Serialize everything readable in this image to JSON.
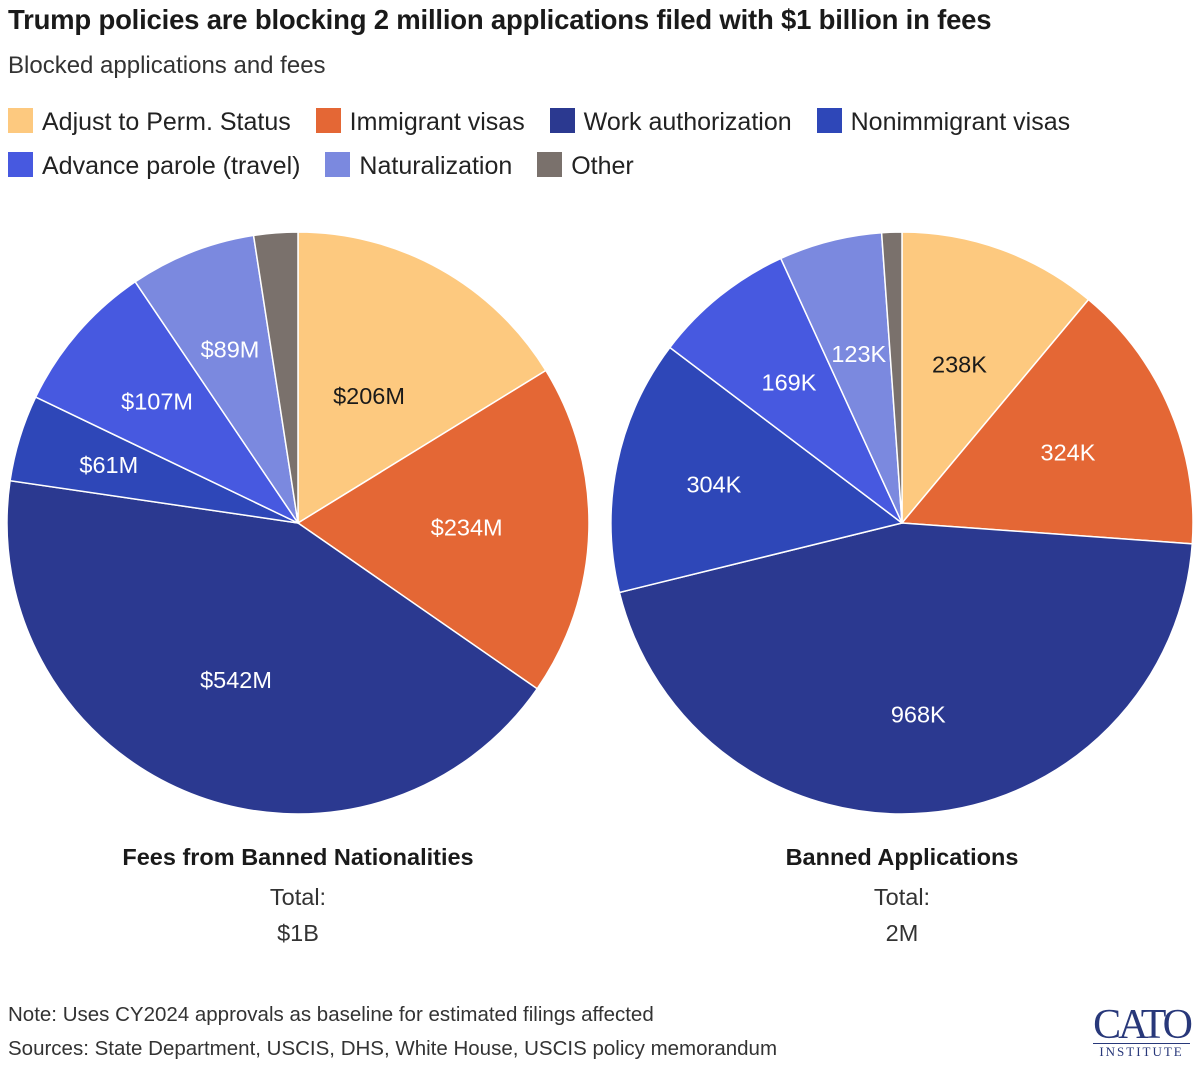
{
  "title": "Trump policies are blocking 2 million applications filed with $1 billion in fees",
  "subtitle": "Blocked applications and fees",
  "legend": [
    {
      "label": "Adjust to Perm. Status",
      "color": "#FDC97F"
    },
    {
      "label": "Immigrant visas",
      "color": "#E46735"
    },
    {
      "label": "Work authorization",
      "color": "#2B3990"
    },
    {
      "label": "Nonimmigrant visas",
      "color": "#2E47B8"
    },
    {
      "label": "Advance parole (travel)",
      "color": "#4759E0"
    },
    {
      "label": "Naturalization",
      "color": "#7B89DF"
    },
    {
      "label": "Other",
      "color": "#7A716C"
    }
  ],
  "chart_data": [
    {
      "type": "pie",
      "title": "Fees from Banned Nationalities",
      "total_label": "Total:",
      "total_value": "$1B",
      "slices": [
        {
          "category": "Adjust to Perm. Status",
          "value": 206,
          "label": "$206M"
        },
        {
          "category": "Immigrant visas",
          "value": 234,
          "label": "$234M"
        },
        {
          "category": "Work authorization",
          "value": 542,
          "label": "$542M"
        },
        {
          "category": "Nonimmigrant visas",
          "value": 61,
          "label": "$61M"
        },
        {
          "category": "Advance parole (travel)",
          "value": 107,
          "label": "$107M"
        },
        {
          "category": "Naturalization",
          "value": 89,
          "label": "$89M"
        },
        {
          "category": "Other",
          "value": 31,
          "label": ""
        }
      ]
    },
    {
      "type": "pie",
      "title": "Banned Applications",
      "total_label": "Total:",
      "total_value": "2M",
      "slices": [
        {
          "category": "Adjust to Perm. Status",
          "value": 238,
          "label": "238K"
        },
        {
          "category": "Immigrant visas",
          "value": 324,
          "label": "324K"
        },
        {
          "category": "Work authorization",
          "value": 968,
          "label": "968K"
        },
        {
          "category": "Nonimmigrant visas",
          "value": 304,
          "label": "304K"
        },
        {
          "category": "Advance parole (travel)",
          "value": 169,
          "label": "169K"
        },
        {
          "category": "Naturalization",
          "value": 123,
          "label": "123K"
        },
        {
          "category": "Other",
          "value": 24,
          "label": ""
        }
      ]
    }
  ],
  "note": "Note: Uses CY2024 approvals as baseline for estimated filings affected",
  "sources": "Sources: State Department, USCIS, DHS, White House, USCIS policy memorandum",
  "logo": {
    "main": "CATO",
    "sub": "INSTITUTE"
  }
}
